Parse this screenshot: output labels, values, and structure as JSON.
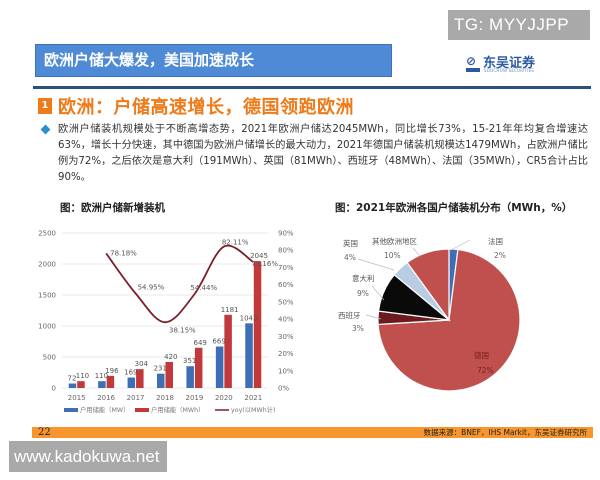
{
  "watermarks": {
    "top": "TG: MYYJJPP",
    "bottom": "www.kadokuwa.net"
  },
  "header": {
    "title": "欧洲户储大爆发，美国加速成长",
    "logo_mark": "⊘",
    "logo_name": "东吴证券",
    "logo_sub": "SOOCHOW SECURITIES",
    "colors": {
      "title_bg": "#4e8ad6",
      "rule": "#2a4f80"
    }
  },
  "section": {
    "number": "1",
    "heading": "欧洲：户储高速增长，德国领跑欧洲",
    "color": "#ee7a1a"
  },
  "bullet": {
    "text": "欧洲户储装机规模处于不断高增态势，2021年欧洲户储达2045MWh，同比增长73%，15-21年年均复合增速达63%，增长十分快速，其中德国为欧洲户储增长的最大动力，2021年德国户储装机规模达1479MWh，占欧洲户储比例为72%，之后依次是意大利（191MWh）、英国（81MWh）、西班牙（48MWh）、法国（35MWh），CR5合计占比90%。"
  },
  "footer": {
    "page": "22",
    "source": "数据来源：BNEF，IHS Markit，东吴证券研究所"
  },
  "chart_data": [
    {
      "type": "bar",
      "title": "图：欧洲户储新增装机",
      "categories": [
        "2015",
        "2016",
        "2017",
        "2018",
        "2019",
        "2020",
        "2021"
      ],
      "series": [
        {
          "name": "户用储能（MW）",
          "type": "bar",
          "axis": "left",
          "color": "#3e6fb5",
          "values": [
            72,
            110,
            169,
            231,
            351,
            669,
            1043
          ]
        },
        {
          "name": "户用储能（MWh）",
          "type": "bar",
          "axis": "left",
          "color": "#c0393b",
          "values": [
            110,
            196,
            304,
            420,
            649,
            1181,
            2045
          ]
        },
        {
          "name": "yoy(以MWh计)",
          "type": "line",
          "axis": "right",
          "color": "#7b1f2a",
          "values": [
            null,
            78.18,
            54.95,
            38.15,
            54.44,
            82.11,
            73.16
          ]
        }
      ],
      "line_labels": [
        "",
        "78.18%",
        "54.95%",
        "38.15%",
        "54.44%",
        "82.11%",
        "73.16%"
      ],
      "y_left": {
        "ticks": [
          "0",
          "500",
          "1000",
          "1500",
          "2000",
          "2500"
        ],
        "range": [
          0,
          2500
        ]
      },
      "y_right": {
        "ticks": [
          "0%",
          "10%",
          "20%",
          "30%",
          "40%",
          "50%",
          "60%",
          "70%",
          "80%",
          "90%"
        ],
        "range": [
          0,
          90
        ]
      },
      "grid": true,
      "legend_position": "bottom"
    },
    {
      "type": "pie",
      "title": "图：2021年欧洲各国户储装机分布（MWh，%）",
      "slices": [
        {
          "label": "法国",
          "value": 2,
          "value_label": "2%",
          "color": "#3e6fb5"
        },
        {
          "label": "德国",
          "value": 72,
          "value_label": "72%",
          "color": "#c0504d"
        },
        {
          "label": "西班牙",
          "value": 3,
          "value_label": "3%",
          "color": "#6b1a1d"
        },
        {
          "label": "意大利",
          "value": 9,
          "value_label": "9%",
          "color": "#0a0a0a"
        },
        {
          "label": "英国",
          "value": 4,
          "value_label": "4%",
          "color": "#b8cce4"
        },
        {
          "label": "其他欧洲地区",
          "value": 10,
          "value_label": "10%",
          "color": "#c0504d"
        }
      ]
    }
  ]
}
